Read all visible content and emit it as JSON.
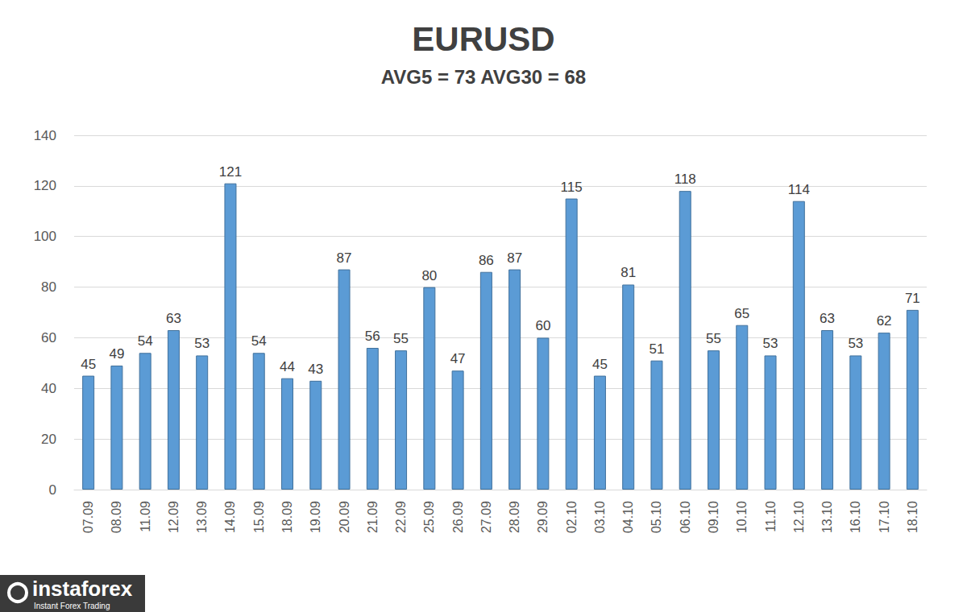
{
  "chart_data": {
    "type": "bar",
    "title": "EURUSD",
    "subtitle": "AVG5 = 73 AVG30 = 68",
    "categories": [
      "07.09",
      "08.09",
      "11.09",
      "12.09",
      "13.09",
      "14.09",
      "15.09",
      "18.09",
      "19.09",
      "20.09",
      "21.09",
      "22.09",
      "25.09",
      "26.09",
      "27.09",
      "28.09",
      "29.09",
      "02.10",
      "03.10",
      "04.10",
      "05.10",
      "06.10",
      "09.10",
      "10.10",
      "11.10",
      "12.10",
      "13.10",
      "16.10",
      "17.10",
      "18.10"
    ],
    "values": [
      45,
      49,
      54,
      63,
      53,
      121,
      54,
      44,
      43,
      87,
      56,
      55,
      80,
      47,
      86,
      87,
      60,
      115,
      45,
      81,
      51,
      118,
      55,
      65,
      53,
      114,
      63,
      53,
      62,
      71
    ],
    "color": "#5b9bd5",
    "ylim": [
      0,
      140
    ],
    "yticks": [
      0,
      20,
      40,
      60,
      80,
      100,
      120,
      140
    ],
    "grid": true,
    "data_labels": true,
    "annotations": [
      "instaforex",
      "Instant Forex Trading"
    ]
  }
}
